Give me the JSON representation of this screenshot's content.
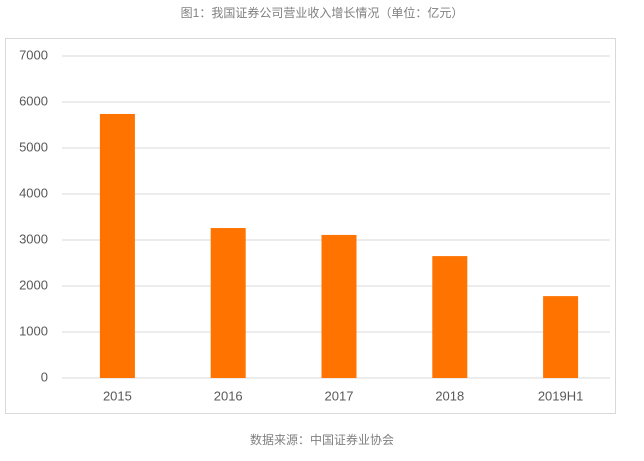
{
  "chart_data": {
    "type": "bar",
    "title": "图1：我国证券公司营业收入增长情况（单位：亿元）",
    "source": "数据来源：中国证券业协会",
    "categories": [
      "2015",
      "2016",
      "2017",
      "2018",
      "2019H1"
    ],
    "values": [
      5740,
      3260,
      3110,
      2650,
      1780
    ],
    "color": "#ff7300",
    "ylim": [
      0,
      7000
    ],
    "yticks": [
      0,
      1000,
      2000,
      3000,
      4000,
      5000,
      6000,
      7000
    ],
    "grid": true
  }
}
